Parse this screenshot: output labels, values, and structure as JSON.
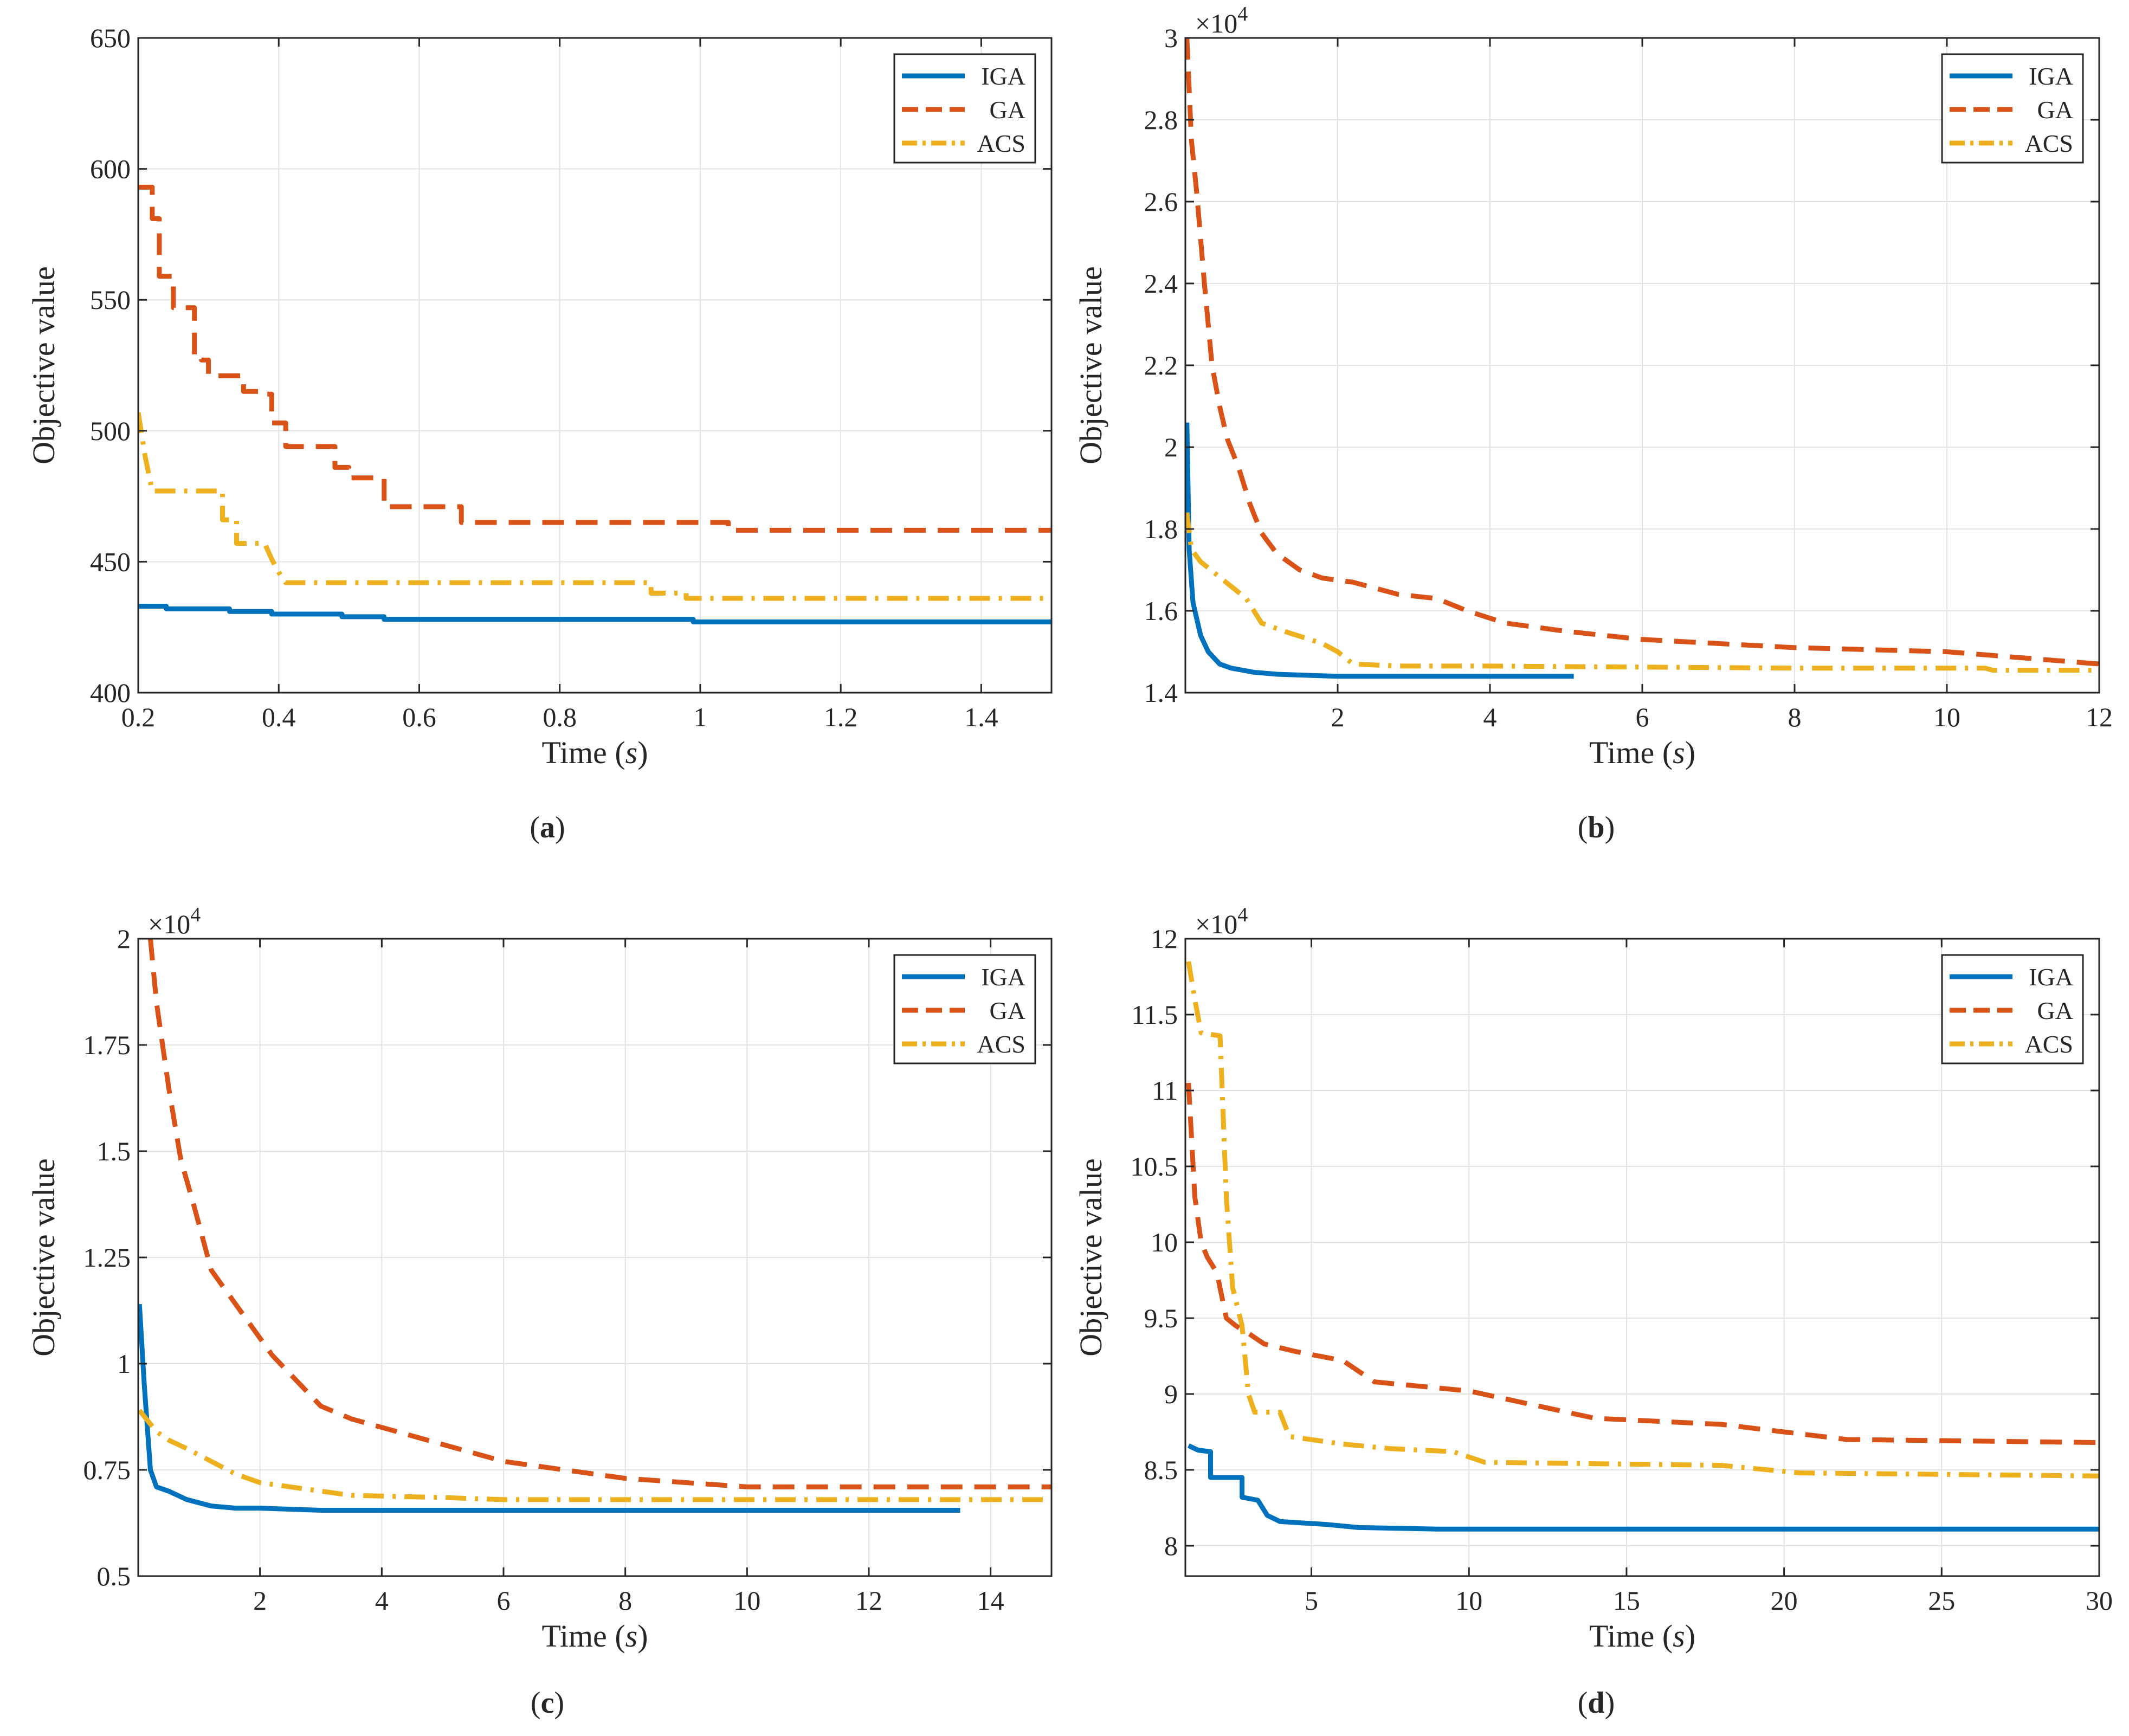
{
  "chart_data": [
    {
      "type": "line",
      "panel_label": "(a)",
      "xlabel": "Time",
      "xlabel_unit": "s",
      "ylabel": "Objective value",
      "y_exponent": null,
      "xlim": [
        0.2,
        1.5
      ],
      "ylim": [
        400,
        650
      ],
      "x_ticks": [
        0.2,
        0.4,
        0.6,
        0.8,
        1,
        1.2,
        1.4
      ],
      "x_tick_labels": [
        "0.2",
        "0.4",
        "0.6",
        "0.8",
        "1",
        "1.2",
        "1.4"
      ],
      "y_ticks": [
        400,
        450,
        500,
        550,
        600,
        650
      ],
      "y_tick_labels": [
        "400",
        "450",
        "500",
        "550",
        "600",
        "650"
      ],
      "grid": true,
      "legend_position": "top-right",
      "series": [
        {
          "name": "IGA",
          "style": "solid",
          "color": "#0072BD",
          "x": [
            0.2,
            0.24,
            0.24,
            0.33,
            0.33,
            0.39,
            0.39,
            0.49,
            0.49,
            0.55,
            0.55,
            0.99,
            0.99,
            1.5
          ],
          "y": [
            433,
            433,
            432,
            432,
            431,
            431,
            430,
            430,
            429,
            429,
            428,
            428,
            427,
            427
          ]
        },
        {
          "name": "GA",
          "style": "dashed",
          "color": "#D95319",
          "x": [
            0.2,
            0.22,
            0.22,
            0.23,
            0.23,
            0.25,
            0.25,
            0.28,
            0.28,
            0.29,
            0.29,
            0.3,
            0.3,
            0.35,
            0.35,
            0.38,
            0.38,
            0.39,
            0.39,
            0.41,
            0.41,
            0.48,
            0.48,
            0.5,
            0.5,
            0.55,
            0.55,
            0.66,
            0.66,
            1.04,
            1.04,
            1.5
          ],
          "y": [
            593,
            593,
            581,
            581,
            559,
            559,
            547,
            547,
            529,
            529,
            527,
            527,
            521,
            521,
            515,
            515,
            514,
            514,
            503,
            503,
            494,
            494,
            486,
            486,
            482,
            482,
            471,
            471,
            465,
            465,
            462,
            462
          ]
        },
        {
          "name": "ACS",
          "style": "dashdot",
          "color": "#EDB120",
          "x": [
            0.2,
            0.21,
            0.22,
            0.32,
            0.32,
            0.34,
            0.34,
            0.38,
            0.39,
            0.4,
            0.41,
            0.93,
            0.93,
            0.98,
            0.98,
            1.5
          ],
          "y": [
            507,
            490,
            477,
            477,
            466,
            466,
            457,
            457,
            451,
            446,
            442,
            442,
            438,
            438,
            436,
            436
          ]
        }
      ]
    },
    {
      "type": "line",
      "panel_label": "(b)",
      "xlabel": "Time",
      "xlabel_unit": "s",
      "ylabel": "Objective value",
      "y_exponent": "×10",
      "y_exponent_power": "4",
      "xlim": [
        0,
        12
      ],
      "ylim": [
        1.4,
        3.0
      ],
      "x_ticks": [
        2,
        4,
        6,
        8,
        10,
        12
      ],
      "x_tick_labels": [
        "2",
        "4",
        "6",
        "8",
        "10",
        "12"
      ],
      "y_ticks": [
        1.4,
        1.6,
        1.8,
        2.0,
        2.2,
        2.4,
        2.6,
        2.8,
        3.0
      ],
      "y_tick_labels": [
        "1.4",
        "1.6",
        "1.8",
        "2",
        "2.2",
        "2.4",
        "2.6",
        "2.8",
        "3"
      ],
      "grid": true,
      "legend_position": "top-right",
      "series": [
        {
          "name": "IGA",
          "style": "solid",
          "color": "#0072BD",
          "x": [
            0.02,
            0.05,
            0.1,
            0.2,
            0.3,
            0.45,
            0.6,
            0.75,
            0.9,
            1.2,
            2.0,
            5.1
          ],
          "y": [
            2.06,
            1.75,
            1.62,
            1.54,
            1.5,
            1.47,
            1.46,
            1.455,
            1.45,
            1.445,
            1.44,
            1.44
          ]
        },
        {
          "name": "GA",
          "style": "dashed",
          "color": "#D95319",
          "x": [
            0.02,
            0.08,
            0.15,
            0.25,
            0.35,
            0.45,
            0.55,
            0.7,
            0.85,
            1.0,
            1.2,
            1.5,
            1.8,
            2.2,
            2.8,
            3.3,
            3.7,
            4.2,
            5.0,
            6.0,
            8.0,
            10.0,
            12.0
          ],
          "y": [
            3.0,
            2.75,
            2.62,
            2.4,
            2.2,
            2.1,
            2.02,
            1.95,
            1.86,
            1.79,
            1.74,
            1.7,
            1.68,
            1.67,
            1.64,
            1.63,
            1.6,
            1.57,
            1.55,
            1.53,
            1.51,
            1.5,
            1.47
          ]
        },
        {
          "name": "ACS",
          "style": "dashdot",
          "color": "#EDB120",
          "x": [
            0.02,
            0.08,
            0.2,
            0.4,
            0.6,
            0.8,
            1.0,
            1.3,
            1.8,
            2.0,
            2.2,
            2.8,
            4.0,
            8.0,
            10.5,
            10.6,
            12.0
          ],
          "y": [
            1.84,
            1.75,
            1.72,
            1.69,
            1.66,
            1.63,
            1.57,
            1.55,
            1.52,
            1.5,
            1.47,
            1.465,
            1.465,
            1.46,
            1.46,
            1.455,
            1.455
          ]
        }
      ]
    },
    {
      "type": "line",
      "panel_label": "(c)",
      "xlabel": "Time",
      "xlabel_unit": "s",
      "ylabel": "Objective value",
      "y_exponent": "×10",
      "y_exponent_power": "4",
      "xlim": [
        0,
        15
      ],
      "ylim": [
        0.5,
        2.0
      ],
      "x_ticks": [
        2,
        4,
        6,
        8,
        10,
        12,
        14
      ],
      "x_tick_labels": [
        "2",
        "4",
        "6",
        "8",
        "10",
        "12",
        "14"
      ],
      "y_ticks": [
        0.5,
        0.75,
        1.0,
        1.25,
        1.5,
        1.75,
        2.0
      ],
      "y_tick_labels": [
        "0.5",
        "0.75",
        "1",
        "1.25",
        "1.5",
        "1.75",
        "2"
      ],
      "grid": true,
      "legend_position": "top-right",
      "series": [
        {
          "name": "IGA",
          "style": "solid",
          "color": "#0072BD",
          "x": [
            0.02,
            0.1,
            0.2,
            0.3,
            0.5,
            0.8,
            1.2,
            1.6,
            2.0,
            3.0,
            13.5
          ],
          "y": [
            1.14,
            0.95,
            0.75,
            0.71,
            0.7,
            0.68,
            0.665,
            0.66,
            0.66,
            0.655,
            0.655
          ]
        },
        {
          "name": "GA",
          "style": "dashed",
          "color": "#D95319",
          "x": [
            0.2,
            0.3,
            0.5,
            0.7,
            0.9,
            1.2,
            1.5,
            1.8,
            2.2,
            2.6,
            3.0,
            3.5,
            4.0,
            5.0,
            6.0,
            7.0,
            8.0,
            9.0,
            10.0,
            15.0
          ],
          "y": [
            2.0,
            1.85,
            1.65,
            1.48,
            1.38,
            1.22,
            1.16,
            1.1,
            1.02,
            0.96,
            0.9,
            0.87,
            0.85,
            0.81,
            0.77,
            0.75,
            0.73,
            0.72,
            0.71,
            0.71
          ]
        },
        {
          "name": "ACS",
          "style": "dashdot",
          "color": "#EDB120",
          "x": [
            0.02,
            0.3,
            0.5,
            0.8,
            1.2,
            1.6,
            2.0,
            2.5,
            3.0,
            3.5,
            5.0,
            6.0,
            15.0
          ],
          "y": [
            0.89,
            0.84,
            0.82,
            0.8,
            0.77,
            0.74,
            0.72,
            0.71,
            0.7,
            0.69,
            0.685,
            0.68,
            0.68
          ]
        }
      ]
    },
    {
      "type": "line",
      "panel_label": "(d)",
      "xlabel": "Time",
      "xlabel_unit": "s",
      "ylabel": "Objective value",
      "y_exponent": "×10",
      "y_exponent_power": "4",
      "xlim": [
        1,
        30
      ],
      "ylim": [
        7.8,
        12.0
      ],
      "x_ticks": [
        5,
        10,
        15,
        20,
        25,
        30
      ],
      "x_tick_labels": [
        "5",
        "10",
        "15",
        "20",
        "25",
        "30"
      ],
      "y_ticks": [
        8.0,
        8.5,
        9.0,
        9.5,
        10.0,
        10.5,
        11.0,
        11.5,
        12.0
      ],
      "y_tick_labels": [
        "8",
        "8.5",
        "9",
        "9.5",
        "10",
        "10.5",
        "11",
        "11.5",
        "12"
      ],
      "grid": true,
      "legend_position": "top-right",
      "series": [
        {
          "name": "IGA",
          "style": "solid",
          "color": "#0072BD",
          "x": [
            1.1,
            1.4,
            1.8,
            1.8,
            2.8,
            2.8,
            3.3,
            3.6,
            4.0,
            5.5,
            6.5,
            9.0,
            30.0
          ],
          "y": [
            8.66,
            8.63,
            8.62,
            8.45,
            8.45,
            8.32,
            8.3,
            8.2,
            8.16,
            8.14,
            8.12,
            8.11,
            8.11
          ]
        },
        {
          "name": "GA",
          "style": "dashed",
          "color": "#D95319",
          "x": [
            1.1,
            1.3,
            1.5,
            1.7,
            2.0,
            2.3,
            2.6,
            3.0,
            3.5,
            4.5,
            6.0,
            7.0,
            10.0,
            12.0,
            14.0,
            18.0,
            20.0,
            22.0,
            30.0
          ],
          "y": [
            11.05,
            10.3,
            10.0,
            9.9,
            9.8,
            9.5,
            9.45,
            9.4,
            9.33,
            9.28,
            9.22,
            9.08,
            9.02,
            8.93,
            8.84,
            8.8,
            8.75,
            8.7,
            8.68
          ]
        },
        {
          "name": "ACS",
          "style": "dashdot",
          "color": "#EDB120",
          "x": [
            1.1,
            1.3,
            1.5,
            2.1,
            2.3,
            2.5,
            2.8,
            3.0,
            3.2,
            4.0,
            4.3,
            6.0,
            7.5,
            9.5,
            10.5,
            18.0,
            20.5,
            30.0
          ],
          "y": [
            11.85,
            11.6,
            11.38,
            11.36,
            10.3,
            9.7,
            9.45,
            9.0,
            8.88,
            8.88,
            8.72,
            8.67,
            8.64,
            8.62,
            8.55,
            8.53,
            8.48,
            8.46
          ]
        }
      ]
    }
  ]
}
